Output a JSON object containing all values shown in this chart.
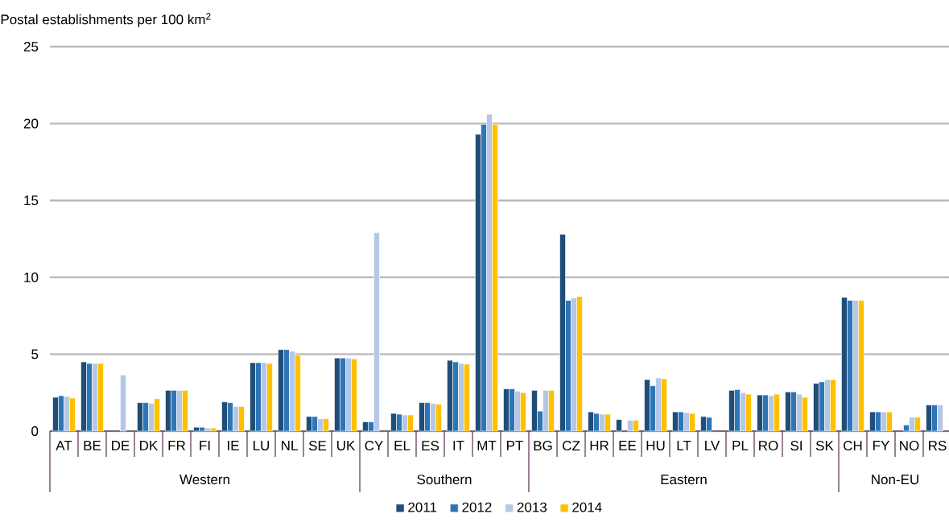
{
  "chart_data": {
    "type": "bar",
    "ylabel": "Postal establishments per 100 km$^{2}$",
    "categories": [
      "AT",
      "BE",
      "DE",
      "DK",
      "FR",
      "FI",
      "IE",
      "LU",
      "NL",
      "SE",
      "UK",
      "CY",
      "EL",
      "ES",
      "IT",
      "MT",
      "PT",
      "BG",
      "CZ",
      "HR",
      "EE",
      "HU",
      "LT",
      "LV",
      "PL",
      "RO",
      "SI",
      "SK",
      "CH",
      "FY",
      "NO",
      "RS"
    ],
    "series": [
      {
        "name": "2011",
        "color": "#1f4e79",
        "values": [
          2.2,
          4.5,
          null,
          1.85,
          2.65,
          0.25,
          1.9,
          4.45,
          5.3,
          0.95,
          4.75,
          0.6,
          1.15,
          1.85,
          4.6,
          19.3,
          2.75,
          2.65,
          12.8,
          1.25,
          0.75,
          3.35,
          1.25,
          0.95,
          2.65,
          2.35,
          2.55,
          3.1,
          8.7,
          1.25,
          null,
          1.7
        ]
      },
      {
        "name": "2012",
        "color": "#2e75b6",
        "values": [
          2.3,
          4.4,
          null,
          1.85,
          2.65,
          0.25,
          1.85,
          4.45,
          5.3,
          0.95,
          4.75,
          0.6,
          1.1,
          1.85,
          4.5,
          19.95,
          2.75,
          1.3,
          8.5,
          1.15,
          null,
          2.95,
          1.25,
          0.9,
          2.7,
          2.35,
          2.55,
          3.2,
          8.5,
          1.25,
          0.4,
          1.7
        ]
      },
      {
        "name": "2013",
        "color": "#b4c7e7",
        "values": [
          2.25,
          4.4,
          3.65,
          1.8,
          2.65,
          0.2,
          1.6,
          4.45,
          5.2,
          0.8,
          4.75,
          12.9,
          1.05,
          1.8,
          4.4,
          20.6,
          2.6,
          2.65,
          8.65,
          1.1,
          0.7,
          3.45,
          1.2,
          null,
          2.5,
          2.3,
          2.4,
          3.35,
          8.5,
          1.25,
          0.9,
          1.7
        ]
      },
      {
        "name": "2014",
        "color": "#ffc000",
        "values": [
          2.15,
          4.4,
          null,
          2.1,
          2.65,
          0.2,
          1.6,
          4.4,
          4.95,
          0.8,
          4.7,
          null,
          1.05,
          1.75,
          4.35,
          19.95,
          2.5,
          2.65,
          8.75,
          1.1,
          0.7,
          3.4,
          1.15,
          null,
          2.4,
          2.4,
          2.2,
          3.35,
          8.5,
          1.25,
          0.9,
          null
        ]
      }
    ],
    "ylim": [
      0,
      25
    ],
    "yticks": [
      0,
      5,
      10,
      15,
      20,
      25
    ],
    "grid": "y",
    "legend": "bottom",
    "annotations": [
      "Western",
      "Southern",
      "Eastern",
      "Non-EU"
    ]
  }
}
